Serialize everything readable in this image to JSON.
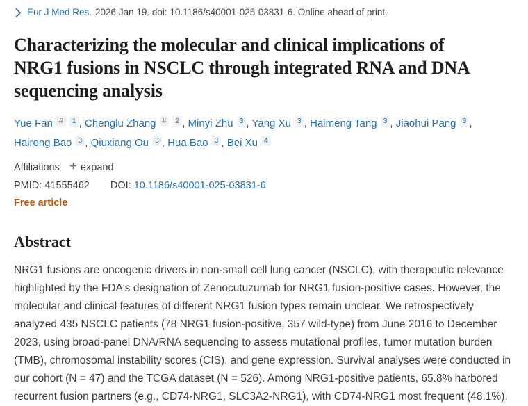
{
  "header": {
    "journal": "Eur J Med Res.",
    "citation_details": "2026 Jan 19. doi: 10.1186/s40001-025-03831-6. Online ahead of print.",
    "chevron_icon": "chevron-right"
  },
  "article": {
    "title": "Characterizing the molecular and clinical implications of NRG1 fusions in NSCLC through integrated RNA and DNA sequencing analysis",
    "authors": [
      {
        "name": "Yue Fan",
        "markers": [
          "#",
          "1"
        ]
      },
      {
        "name": "Chenglu Zhang",
        "markers": [
          "#",
          "2"
        ]
      },
      {
        "name": "Minyi Zhu",
        "markers": [
          "3"
        ]
      },
      {
        "name": "Yang Xu",
        "markers": [
          "3"
        ]
      },
      {
        "name": "Haimeng Tang",
        "markers": [
          "3"
        ]
      },
      {
        "name": "Jiaohui Pang",
        "markers": [
          "3"
        ]
      },
      {
        "name": "Hairong Bao",
        "markers": [
          "3"
        ]
      },
      {
        "name": "Qiuxiang Ou",
        "markers": [
          "3"
        ]
      },
      {
        "name": "Hua Bao",
        "markers": [
          "3"
        ]
      },
      {
        "name": "Bei Xu",
        "markers": [
          "4"
        ]
      }
    ],
    "affiliations_label": "Affiliations",
    "expand_icon": "+",
    "expand_label": "expand",
    "pmid_label": "PMID:",
    "pmid": "41555462",
    "doi_label": "DOI:",
    "doi": "10.1186/s40001-025-03831-6",
    "free_article_label": "Free article"
  },
  "abstract": {
    "heading": "Abstract",
    "text": "NRG1 fusions are oncogenic drivers in non-small cell lung cancer (NSCLC), with therapeutic relevance highlighted by the FDA's designation of Zenocutuzumab for NRG1 fusion-positive cases. However, the molecular and clinical features of different NRG1 fusion types remain unclear. We retrospectively analyzed 435 NSCLC patients (78 NRG1 fusion-positive, 357 wild-type) from June 2016 to December 2023, using broad-panel DNA/RNA sequencing to assess mutational profiles, tumor mutation burden (TMB), chromosomal instability scores (CIS), and gene expression. Survival analyses were conducted in our cohort (N = 47) and the TCGA dataset (N = 526). Among NRG1-positive patients, 65.8% harbored recurrent fusion partners (e.g., CD74-NRG1, SLC3A2-NRG1), with CD74-NRG1 most frequent (48.1%)."
  },
  "colors": {
    "link_blue": "#2472b5",
    "free_article_orange": "#c3590e",
    "heading_dark": "#1e2022",
    "body_text": "#3d4144",
    "marker_badge_bg": "#f0f1f2"
  }
}
